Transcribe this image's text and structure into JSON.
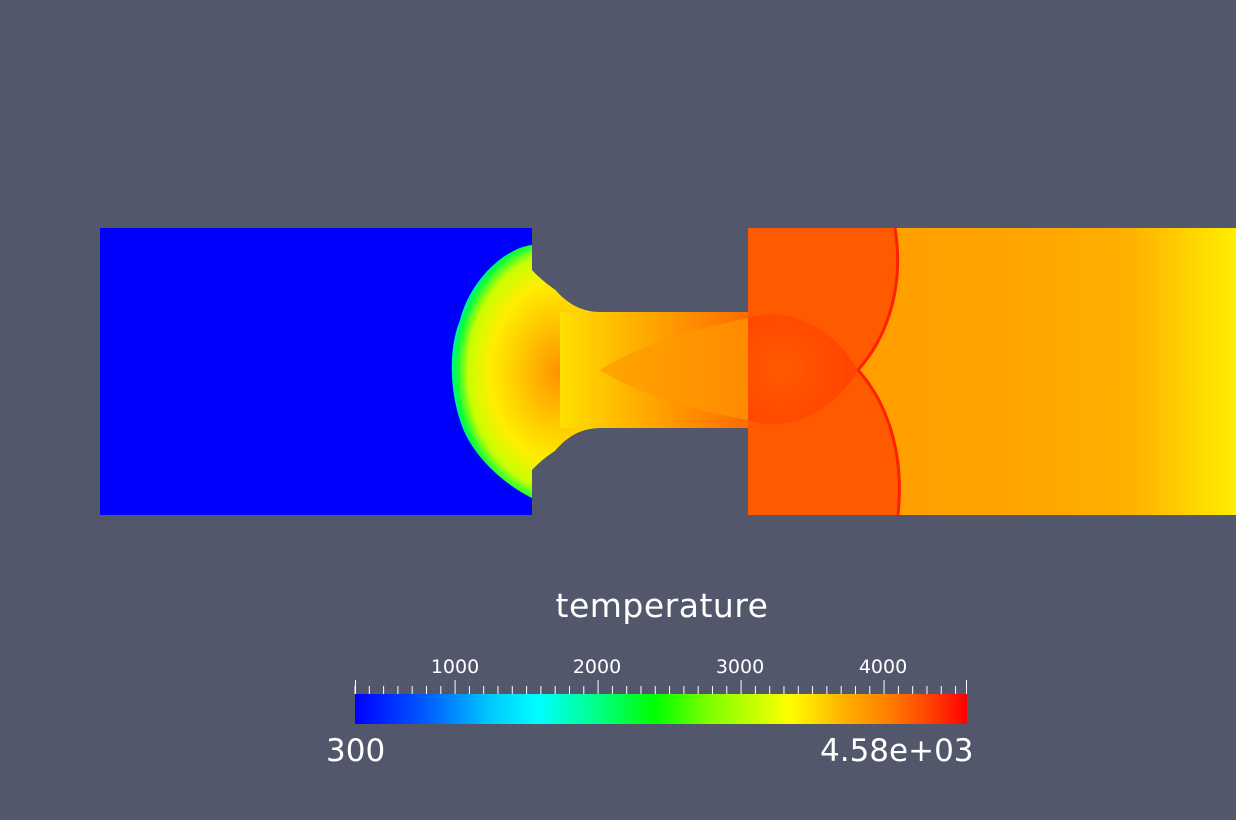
{
  "background_color": "#52576b",
  "legend": {
    "title": "temperature",
    "range_min": "300",
    "range_max": "4.58e+03",
    "scale_min": 300,
    "scale_max": 4580,
    "tick_labels": [
      "1000",
      "2000",
      "3000",
      "4000"
    ],
    "tick_values": [
      1000,
      2000,
      3000,
      4000
    ],
    "minor_tick_step": 100,
    "colormap": "rainbow-jet"
  },
  "field_colors": {
    "upstream_chamber": "#0000ff",
    "downstream_chamber": "#ff6a00",
    "far_field": "#ffa500",
    "outlet": "#ffee00"
  }
}
